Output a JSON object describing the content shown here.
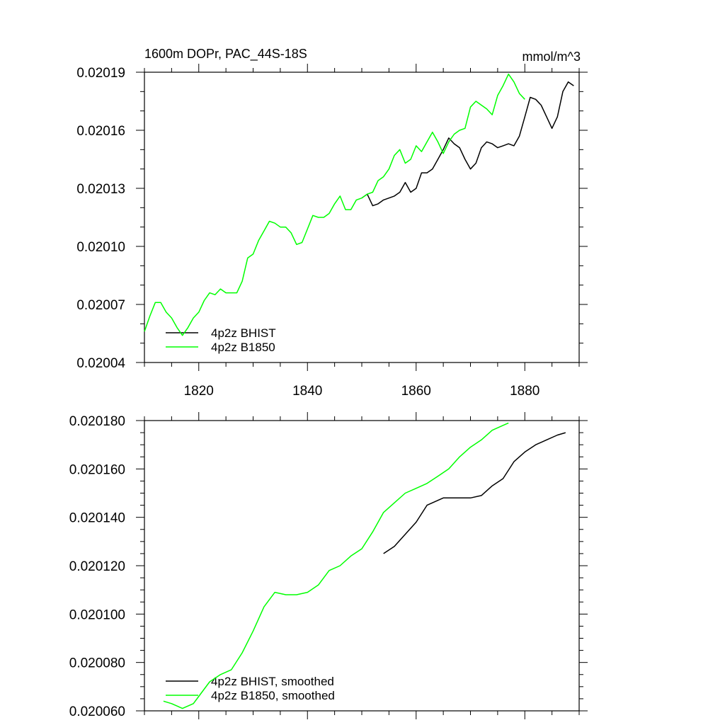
{
  "chart_data": [
    {
      "type": "line",
      "title": "1600m DOPr, PAC_44S-18S",
      "units": "mmol/m^3",
      "xlim": [
        1810,
        1890
      ],
      "ylim": [
        0.02004,
        0.02019
      ],
      "x_ticks": [
        1820,
        1840,
        1860,
        1880
      ],
      "x_tick_labels": [
        "1820",
        "1840",
        "1860",
        "1880"
      ],
      "y_ticks": [
        0.02004,
        0.02007,
        0.0201,
        0.02013,
        0.02016,
        0.02019
      ],
      "y_tick_labels": [
        "0.02004",
        "0.02007",
        "0.02010",
        "0.02013",
        "0.02016",
        "0.02019"
      ],
      "legend_position": "bottom-left",
      "grid": false,
      "series": [
        {
          "name": "4p2z BHIST",
          "color": "#000000",
          "x": [
            1850,
            1851,
            1852,
            1853,
            1854,
            1855,
            1856,
            1857,
            1858,
            1859,
            1860,
            1861,
            1862,
            1863,
            1864,
            1865,
            1866,
            1867,
            1868,
            1869,
            1870,
            1871,
            1872,
            1873,
            1874,
            1875,
            1876,
            1877,
            1878,
            1879,
            1880,
            1881,
            1882,
            1883,
            1884,
            1885,
            1886,
            1887,
            1888,
            1889
          ],
          "y": [
            0.020125,
            0.020127,
            0.020121,
            0.020122,
            0.020124,
            0.020125,
            0.020126,
            0.020128,
            0.020133,
            0.020128,
            0.02013,
            0.020138,
            0.020138,
            0.02014,
            0.020145,
            0.02015,
            0.020156,
            0.020153,
            0.020151,
            0.020145,
            0.02014,
            0.020143,
            0.020151,
            0.020154,
            0.020153,
            0.020151,
            0.020152,
            0.020153,
            0.020152,
            0.020157,
            0.020167,
            0.020177,
            0.020176,
            0.020173,
            0.020167,
            0.020161,
            0.020167,
            0.02018,
            0.020185,
            0.020183
          ]
        },
        {
          "name": "4p2z B1850",
          "color": "#00ff00",
          "x": [
            1810,
            1811,
            1812,
            1813,
            1814,
            1815,
            1816,
            1817,
            1818,
            1819,
            1820,
            1821,
            1822,
            1823,
            1824,
            1825,
            1826,
            1827,
            1828,
            1829,
            1830,
            1831,
            1832,
            1833,
            1834,
            1835,
            1836,
            1837,
            1838,
            1839,
            1840,
            1841,
            1842,
            1843,
            1844,
            1845,
            1846,
            1847,
            1848,
            1849,
            1850,
            1851,
            1852,
            1853,
            1854,
            1855,
            1856,
            1857,
            1858,
            1859,
            1860,
            1861,
            1862,
            1863,
            1864,
            1865,
            1866,
            1867,
            1868,
            1869,
            1870,
            1871,
            1872,
            1873,
            1874,
            1875,
            1876,
            1877,
            1878,
            1879,
            1880
          ],
          "y": [
            0.020056,
            0.020064,
            0.020071,
            0.020071,
            0.020066,
            0.020063,
            0.020058,
            0.020054,
            0.020058,
            0.020063,
            0.020066,
            0.020072,
            0.020076,
            0.020075,
            0.020078,
            0.020076,
            0.020076,
            0.020076,
            0.020082,
            0.020094,
            0.020096,
            0.020103,
            0.020108,
            0.020113,
            0.020112,
            0.02011,
            0.02011,
            0.020107,
            0.020101,
            0.020102,
            0.020109,
            0.020116,
            0.020115,
            0.020115,
            0.020117,
            0.020122,
            0.020126,
            0.020119,
            0.020119,
            0.020124,
            0.020125,
            0.020127,
            0.020128,
            0.020134,
            0.020136,
            0.02014,
            0.020147,
            0.02015,
            0.020143,
            0.020145,
            0.020152,
            0.020149,
            0.020154,
            0.020159,
            0.020154,
            0.020148,
            0.020154,
            0.020158,
            0.02016,
            0.020161,
            0.020172,
            0.020175,
            0.020173,
            0.020171,
            0.020168,
            0.020178,
            0.020183,
            0.020189,
            0.020185,
            0.020179,
            0.020176
          ]
        }
      ]
    },
    {
      "type": "line",
      "xlim": [
        1810,
        1890
      ],
      "ylim": [
        0.02006,
        0.02018
      ],
      "x_ticks": [
        1820,
        1840,
        1860,
        1880
      ],
      "x_tick_labels": [],
      "y_ticks": [
        0.02006,
        0.02008,
        0.0201,
        0.02012,
        0.02014,
        0.02016,
        0.02018
      ],
      "y_tick_labels": [
        "0.020060",
        "0.020080",
        "0.020100",
        "0.020120",
        "0.020140",
        "0.020160",
        "0.020180"
      ],
      "legend_position": "bottom-left",
      "grid": false,
      "series": [
        {
          "name": "4p2z BHIST, smoothed",
          "color": "#000000",
          "x": [
            1854,
            1856,
            1858,
            1860,
            1862,
            1864,
            1865,
            1866,
            1868,
            1870,
            1872,
            1874,
            1876,
            1878,
            1880,
            1882,
            1884,
            1886,
            1887.5
          ],
          "y": [
            0.020125,
            0.020128,
            0.020133,
            0.020138,
            0.020145,
            0.020147,
            0.020148,
            0.020148,
            0.020148,
            0.020148,
            0.020149,
            0.020153,
            0.020156,
            0.020163,
            0.020167,
            0.02017,
            0.020172,
            0.020174,
            0.020175
          ]
        },
        {
          "name": "4p2z B1850, smoothed",
          "color": "#00ff00",
          "x": [
            1813.5,
            1815,
            1816,
            1817,
            1818,
            1819,
            1820,
            1822,
            1824,
            1826,
            1828,
            1830,
            1832,
            1834,
            1836,
            1838,
            1840,
            1842,
            1844,
            1846,
            1848,
            1850,
            1852,
            1854,
            1856,
            1858,
            1860,
            1862,
            1864,
            1866,
            1868,
            1870,
            1872,
            1874,
            1876,
            1877
          ],
          "y": [
            0.020064,
            0.020063,
            0.020062,
            0.020061,
            0.020062,
            0.020063,
            0.020066,
            0.020072,
            0.020075,
            0.020077,
            0.020084,
            0.020093,
            0.020103,
            0.020109,
            0.020108,
            0.020108,
            0.020109,
            0.020112,
            0.020118,
            0.02012,
            0.020124,
            0.020127,
            0.020134,
            0.020142,
            0.020146,
            0.02015,
            0.020152,
            0.020154,
            0.020157,
            0.02016,
            0.020165,
            0.020169,
            0.020172,
            0.020176,
            0.020178,
            0.020179
          ]
        }
      ]
    }
  ]
}
